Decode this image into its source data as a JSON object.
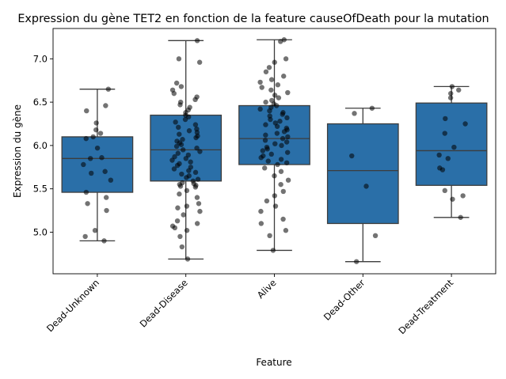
{
  "chart_data": {
    "type": "box",
    "title": "Expression du gène TET2 en fonction de la feature causeOfDeath pour la mutation",
    "xlabel": "Feature",
    "ylabel": "Expression du gène",
    "ylim": [
      4.52,
      7.35
    ],
    "yticks": [
      "5.0",
      "5.5",
      "6.0",
      "6.5",
      "7.0"
    ],
    "grid": false,
    "box_color": "#2a6fa8",
    "point_color": "#000000",
    "categories": [
      "Dead-Unknown",
      "Dead-Disease",
      "Alive",
      "Dead-Other",
      "Dead-Treatment"
    ],
    "boxes": [
      {
        "category": "Dead-Unknown",
        "whisker_low": 4.9,
        "q1": 5.46,
        "median": 5.85,
        "q3": 6.1,
        "whisker_high": 6.65
      },
      {
        "category": "Dead-Disease",
        "whisker_low": 4.69,
        "q1": 5.59,
        "median": 5.95,
        "q3": 6.35,
        "whisker_high": 7.21
      },
      {
        "category": "Alive",
        "whisker_low": 4.79,
        "q1": 5.78,
        "median": 6.08,
        "q3": 6.46,
        "whisker_high": 7.22
      },
      {
        "category": "Dead-Other",
        "whisker_low": 4.66,
        "q1": 5.1,
        "median": 5.71,
        "q3": 6.25,
        "whisker_high": 6.43
      },
      {
        "category": "Dead-Treatment",
        "whisker_low": 5.17,
        "q1": 5.54,
        "median": 5.94,
        "q3": 6.49,
        "whisker_high": 6.68
      }
    ],
    "points": [
      [
        4.9,
        4.95,
        5.02,
        5.25,
        5.33,
        5.4,
        5.46,
        5.6,
        5.68,
        5.7,
        5.78,
        5.85,
        5.86,
        5.97,
        6.08,
        6.1,
        6.14,
        6.18,
        6.26,
        6.4,
        6.46,
        6.65
      ],
      [
        4.69,
        4.83,
        4.95,
        5.02,
        5.05,
        5.07,
        5.1,
        5.13,
        5.2,
        5.24,
        5.28,
        5.3,
        5.33,
        5.4,
        5.44,
        5.48,
        5.52,
        5.53,
        5.54,
        5.55,
        5.56,
        5.57,
        5.59,
        5.61,
        5.63,
        5.65,
        5.67,
        5.69,
        5.71,
        5.73,
        5.75,
        5.77,
        5.79,
        5.81,
        5.83,
        5.85,
        5.87,
        5.89,
        5.91,
        5.93,
        5.95,
        5.97,
        5.99,
        6.01,
        6.03,
        6.05,
        6.07,
        6.09,
        6.11,
        6.13,
        6.15,
        6.17,
        6.19,
        6.21,
        6.24,
        6.27,
        6.3,
        6.33,
        6.35,
        6.38,
        6.41,
        6.44,
        6.47,
        6.5,
        6.53,
        6.56,
        6.6,
        6.64,
        6.68,
        6.72,
        6.96,
        7.0,
        7.21
      ],
      [
        4.79,
        4.96,
        5.02,
        5.1,
        5.15,
        5.24,
        5.3,
        5.36,
        5.42,
        5.47,
        5.55,
        5.6,
        5.65,
        5.7,
        5.74,
        5.78,
        5.8,
        5.82,
        5.84,
        5.86,
        5.88,
        5.9,
        5.92,
        5.94,
        5.96,
        5.98,
        6.0,
        6.02,
        6.04,
        6.06,
        6.08,
        6.1,
        6.12,
        6.14,
        6.16,
        6.18,
        6.2,
        6.22,
        6.24,
        6.26,
        6.28,
        6.3,
        6.32,
        6.34,
        6.36,
        6.38,
        6.4,
        6.42,
        6.44,
        6.46,
        6.48,
        6.5,
        6.52,
        6.55,
        6.58,
        6.61,
        6.64,
        6.67,
        6.7,
        6.73,
        6.76,
        6.8,
        6.85,
        6.9,
        6.96,
        7.0,
        7.2,
        7.22
      ],
      [
        4.66,
        4.96,
        5.53,
        5.88,
        6.37,
        6.43
      ],
      [
        5.17,
        5.38,
        5.42,
        5.48,
        5.72,
        5.74,
        5.85,
        5.89,
        5.98,
        6.14,
        6.25,
        6.31,
        6.55,
        6.6,
        6.64,
        6.68
      ]
    ]
  }
}
